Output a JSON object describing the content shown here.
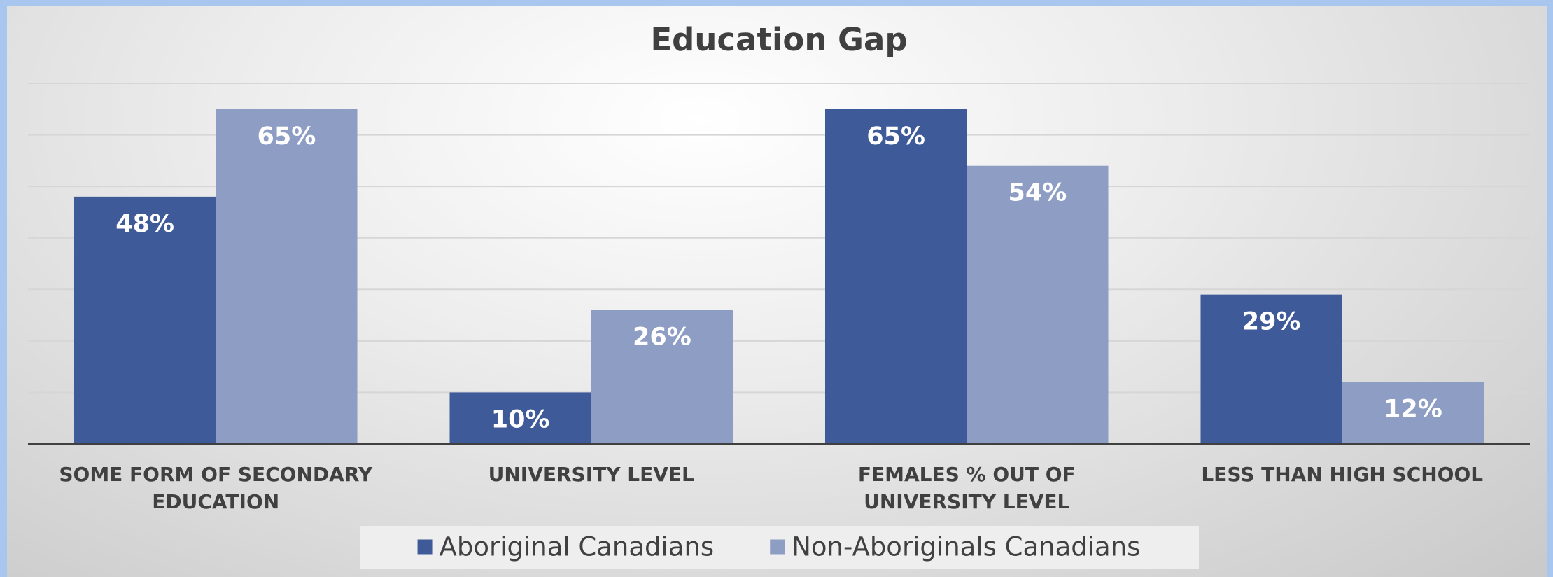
{
  "chart_data": {
    "type": "bar",
    "title": "Education Gap",
    "categories": [
      "SOME FORM OF SECONDARY EDUCATION",
      "UNIVERSITY LEVEL",
      "FEMALES % OUT OF UNIVERSITY LEVEL",
      "LESS THAN HIGH SCHOOL"
    ],
    "series": [
      {
        "name": "Aboriginal Canadians",
        "color": "#3f5a99",
        "values": [
          48,
          10,
          65,
          29
        ],
        "value_labels": [
          "48%",
          "10%",
          "65%",
          "29%"
        ]
      },
      {
        "name": "Non-Aboriginals Canadians",
        "color": "#8e9dc4",
        "values": [
          65,
          26,
          54,
          12
        ],
        "value_labels": [
          "65%",
          "26%",
          "54%",
          "12%"
        ]
      }
    ],
    "ylim": [
      0,
      70
    ],
    "yticks": [
      0,
      10,
      20,
      30,
      40,
      50,
      60,
      70
    ],
    "grid": true,
    "legend": "bottom"
  }
}
